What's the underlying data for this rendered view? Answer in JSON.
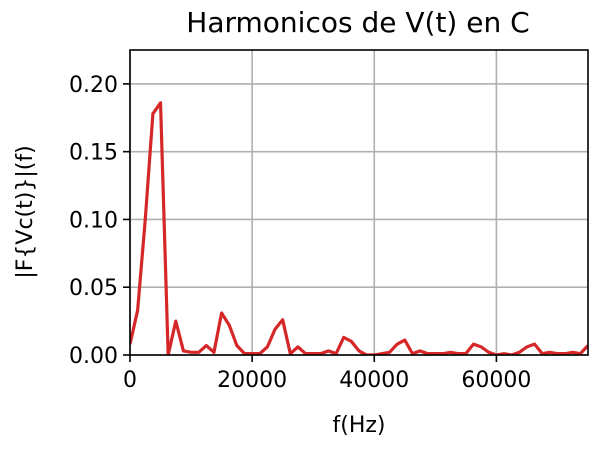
{
  "chart_data": {
    "type": "line",
    "title": "Harmonicos de V(t) en C",
    "xlabel": "f(Hz)",
    "ylabel": "|F{Vc(t)}|(f)",
    "xlim": [
      0,
      75000
    ],
    "ylim": [
      0,
      0.225
    ],
    "grid": true,
    "x_ticks": [
      0,
      20000,
      40000,
      60000
    ],
    "x_tick_labels": [
      "0",
      "20000",
      "40000",
      "60000"
    ],
    "y_ticks": [
      0.0,
      0.05,
      0.1,
      0.15,
      0.2
    ],
    "y_tick_labels": [
      "0.00",
      "0.05",
      "0.10",
      "0.15",
      "0.20"
    ],
    "series": [
      {
        "color": "#d62728",
        "x": [
          0,
          1250,
          2500,
          3750,
          5000,
          6250,
          7500,
          8750,
          10000,
          11250,
          12500,
          13750,
          15000,
          16250,
          17500,
          18750,
          20000,
          21250,
          22500,
          23750,
          25000,
          26250,
          27500,
          28750,
          30000,
          31250,
          32500,
          33750,
          35000,
          36250,
          37500,
          38750,
          40000,
          41250,
          42500,
          43750,
          45000,
          46250,
          47500,
          48750,
          50000,
          51250,
          52500,
          53750,
          55000,
          56250,
          57500,
          58750,
          60000,
          61250,
          62500,
          63750,
          65000,
          66250,
          67500,
          68750,
          70000,
          71250,
          72500,
          73750,
          75000
        ],
        "values": [
          0.008,
          0.033,
          0.1,
          0.178,
          0.186,
          0.0,
          0.025,
          0.003,
          0.002,
          0.002,
          0.007,
          0.002,
          0.031,
          0.022,
          0.007,
          0.001,
          0.001,
          0.001,
          0.006,
          0.019,
          0.026,
          0.001,
          0.006,
          0.001,
          0.001,
          0.001,
          0.003,
          0.001,
          0.013,
          0.01,
          0.003,
          0.0,
          0.0,
          0.001,
          0.002,
          0.008,
          0.011,
          0.001,
          0.003,
          0.001,
          0.001,
          0.001,
          0.002,
          0.001,
          0.001,
          0.008,
          0.006,
          0.002,
          0.0,
          0.001,
          0.0,
          0.002,
          0.006,
          0.008,
          0.001,
          0.002,
          0.001,
          0.001,
          0.002,
          0.001,
          0.007
        ]
      }
    ]
  }
}
